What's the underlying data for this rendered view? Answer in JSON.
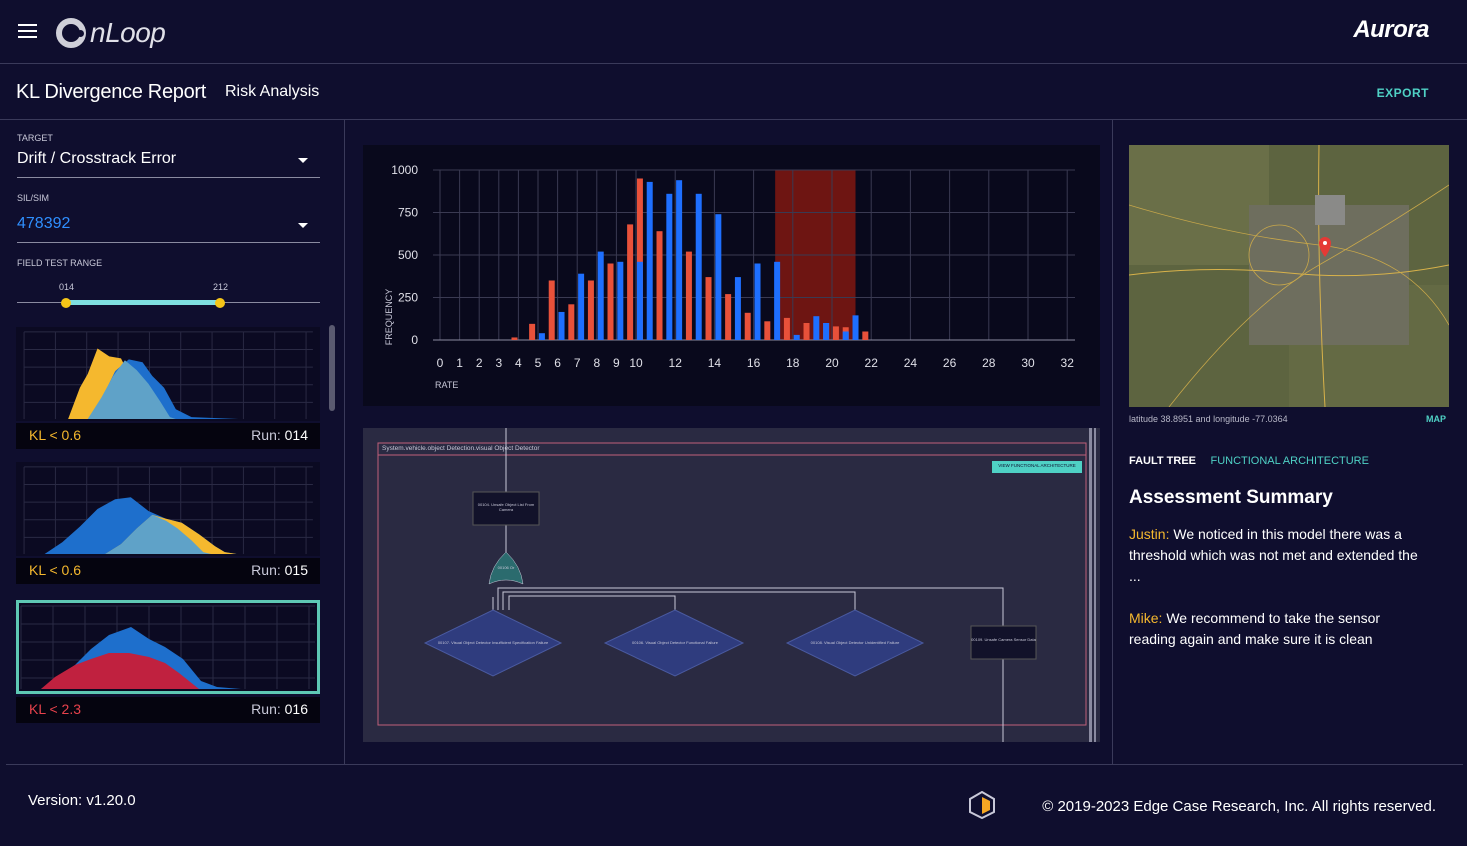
{
  "app": {
    "name": "nLoop",
    "partner_logo": "Aurora"
  },
  "header": {
    "title": "KL Divergence Report",
    "subtitle": "Risk Analysis",
    "export_label": "EXPORT"
  },
  "sidebar": {
    "target_label": "TARGET",
    "target_value": "Drift / Crosstrack Error",
    "silsim_label": "SIL/SIM",
    "silsim_value": "478392",
    "range_label": "FIELD TEST RANGE",
    "range_min": "014",
    "range_max": "212",
    "runs": [
      {
        "kl": "KL < 0.6",
        "run_label": "Run:",
        "run_id": "014",
        "kl_color": "#f5b82e"
      },
      {
        "kl": "KL < 0.6",
        "run_label": "Run:",
        "run_id": "015",
        "kl_color": "#f5b82e"
      },
      {
        "kl": "KL < 2.3",
        "run_label": "Run:",
        "run_id": "016",
        "kl_color": "#e8424c"
      }
    ]
  },
  "chart_data": {
    "type": "bar",
    "xlabel": "RATE",
    "ylabel": "FREQUENCY",
    "ylim": [
      0,
      1000
    ],
    "yticks": [
      "0",
      "250",
      "500",
      "750",
      "1000"
    ],
    "xticks": [
      "0",
      "1",
      "2",
      "3",
      "4",
      "5",
      "6",
      "7",
      "8",
      "9",
      "10",
      "12",
      "14",
      "16",
      "18",
      "20",
      "22",
      "24",
      "26",
      "28",
      "30",
      "32"
    ],
    "highlight_range": [
      17.1,
      21.2
    ],
    "series": [
      {
        "color": "#e8513a",
        "x": [
          3.8,
          4.7,
          5.7,
          6.7,
          7.7,
          8.7,
          9.7,
          10.2,
          11.2,
          12.7,
          13.7,
          14.7,
          15.7,
          16.7,
          17.7,
          18.7,
          19.7,
          20.2,
          20.7,
          21.7
        ],
        "values": [
          15,
          95,
          350,
          210,
          350,
          450,
          680,
          950,
          640,
          520,
          370,
          270,
          160,
          110,
          130,
          100,
          100,
          80,
          75,
          50
        ]
      },
      {
        "color": "#1e6fff",
        "x": [
          5.2,
          6.2,
          7.2,
          8.2,
          9.2,
          10.2,
          10.7,
          11.7,
          12.2,
          13.2,
          14.2,
          15.2,
          16.2,
          17.2,
          18.2,
          19.2,
          19.7,
          20.7,
          21.2
        ],
        "values": [
          40,
          165,
          390,
          520,
          460,
          460,
          930,
          860,
          940,
          860,
          740,
          370,
          450,
          460,
          30,
          140,
          100,
          50,
          145
        ]
      }
    ]
  },
  "fault_tree": {
    "frame_title": "System.vehicle.object Detection.visual Object Detector",
    "view_button": "VIEW FUNCTIONAL ARCHITECTURE",
    "top_node": "00104. Unsafe Object List From Camera",
    "gate": "00106 Or",
    "nodes": [
      "00107. Visual Object Detector Insufficient Specification Failure",
      "00106. Visual Object Detector Functional Failure",
      "00108. Visual Object Detector Unidentified Failure",
      "00109. Unsafe Camera Sensor Data"
    ]
  },
  "map": {
    "caption": "latitude 38.8951 and longitude -77.0364",
    "link": "MAP"
  },
  "tabs": {
    "active": "FAULT TREE",
    "other": "FUNCTIONAL ARCHITECTURE"
  },
  "summary": {
    "title": "Assessment Summary",
    "comments": [
      {
        "author": "Justin:",
        "text": " We noticed in this model there was a threshold which was not met and extended the ..."
      },
      {
        "author": "Mike:",
        "text": " We recommend to take the sensor reading again and make sure it is clean"
      }
    ]
  },
  "footer": {
    "version": "Version: v1.20.0",
    "copyright": "© 2019-2023 Edge Case Research, Inc. All rights reserved."
  },
  "icons": [
    "menu-icon",
    "nloop-logo-icon",
    "chevron-down-icon",
    "map-pin-icon",
    "ecr-logo-icon"
  ]
}
